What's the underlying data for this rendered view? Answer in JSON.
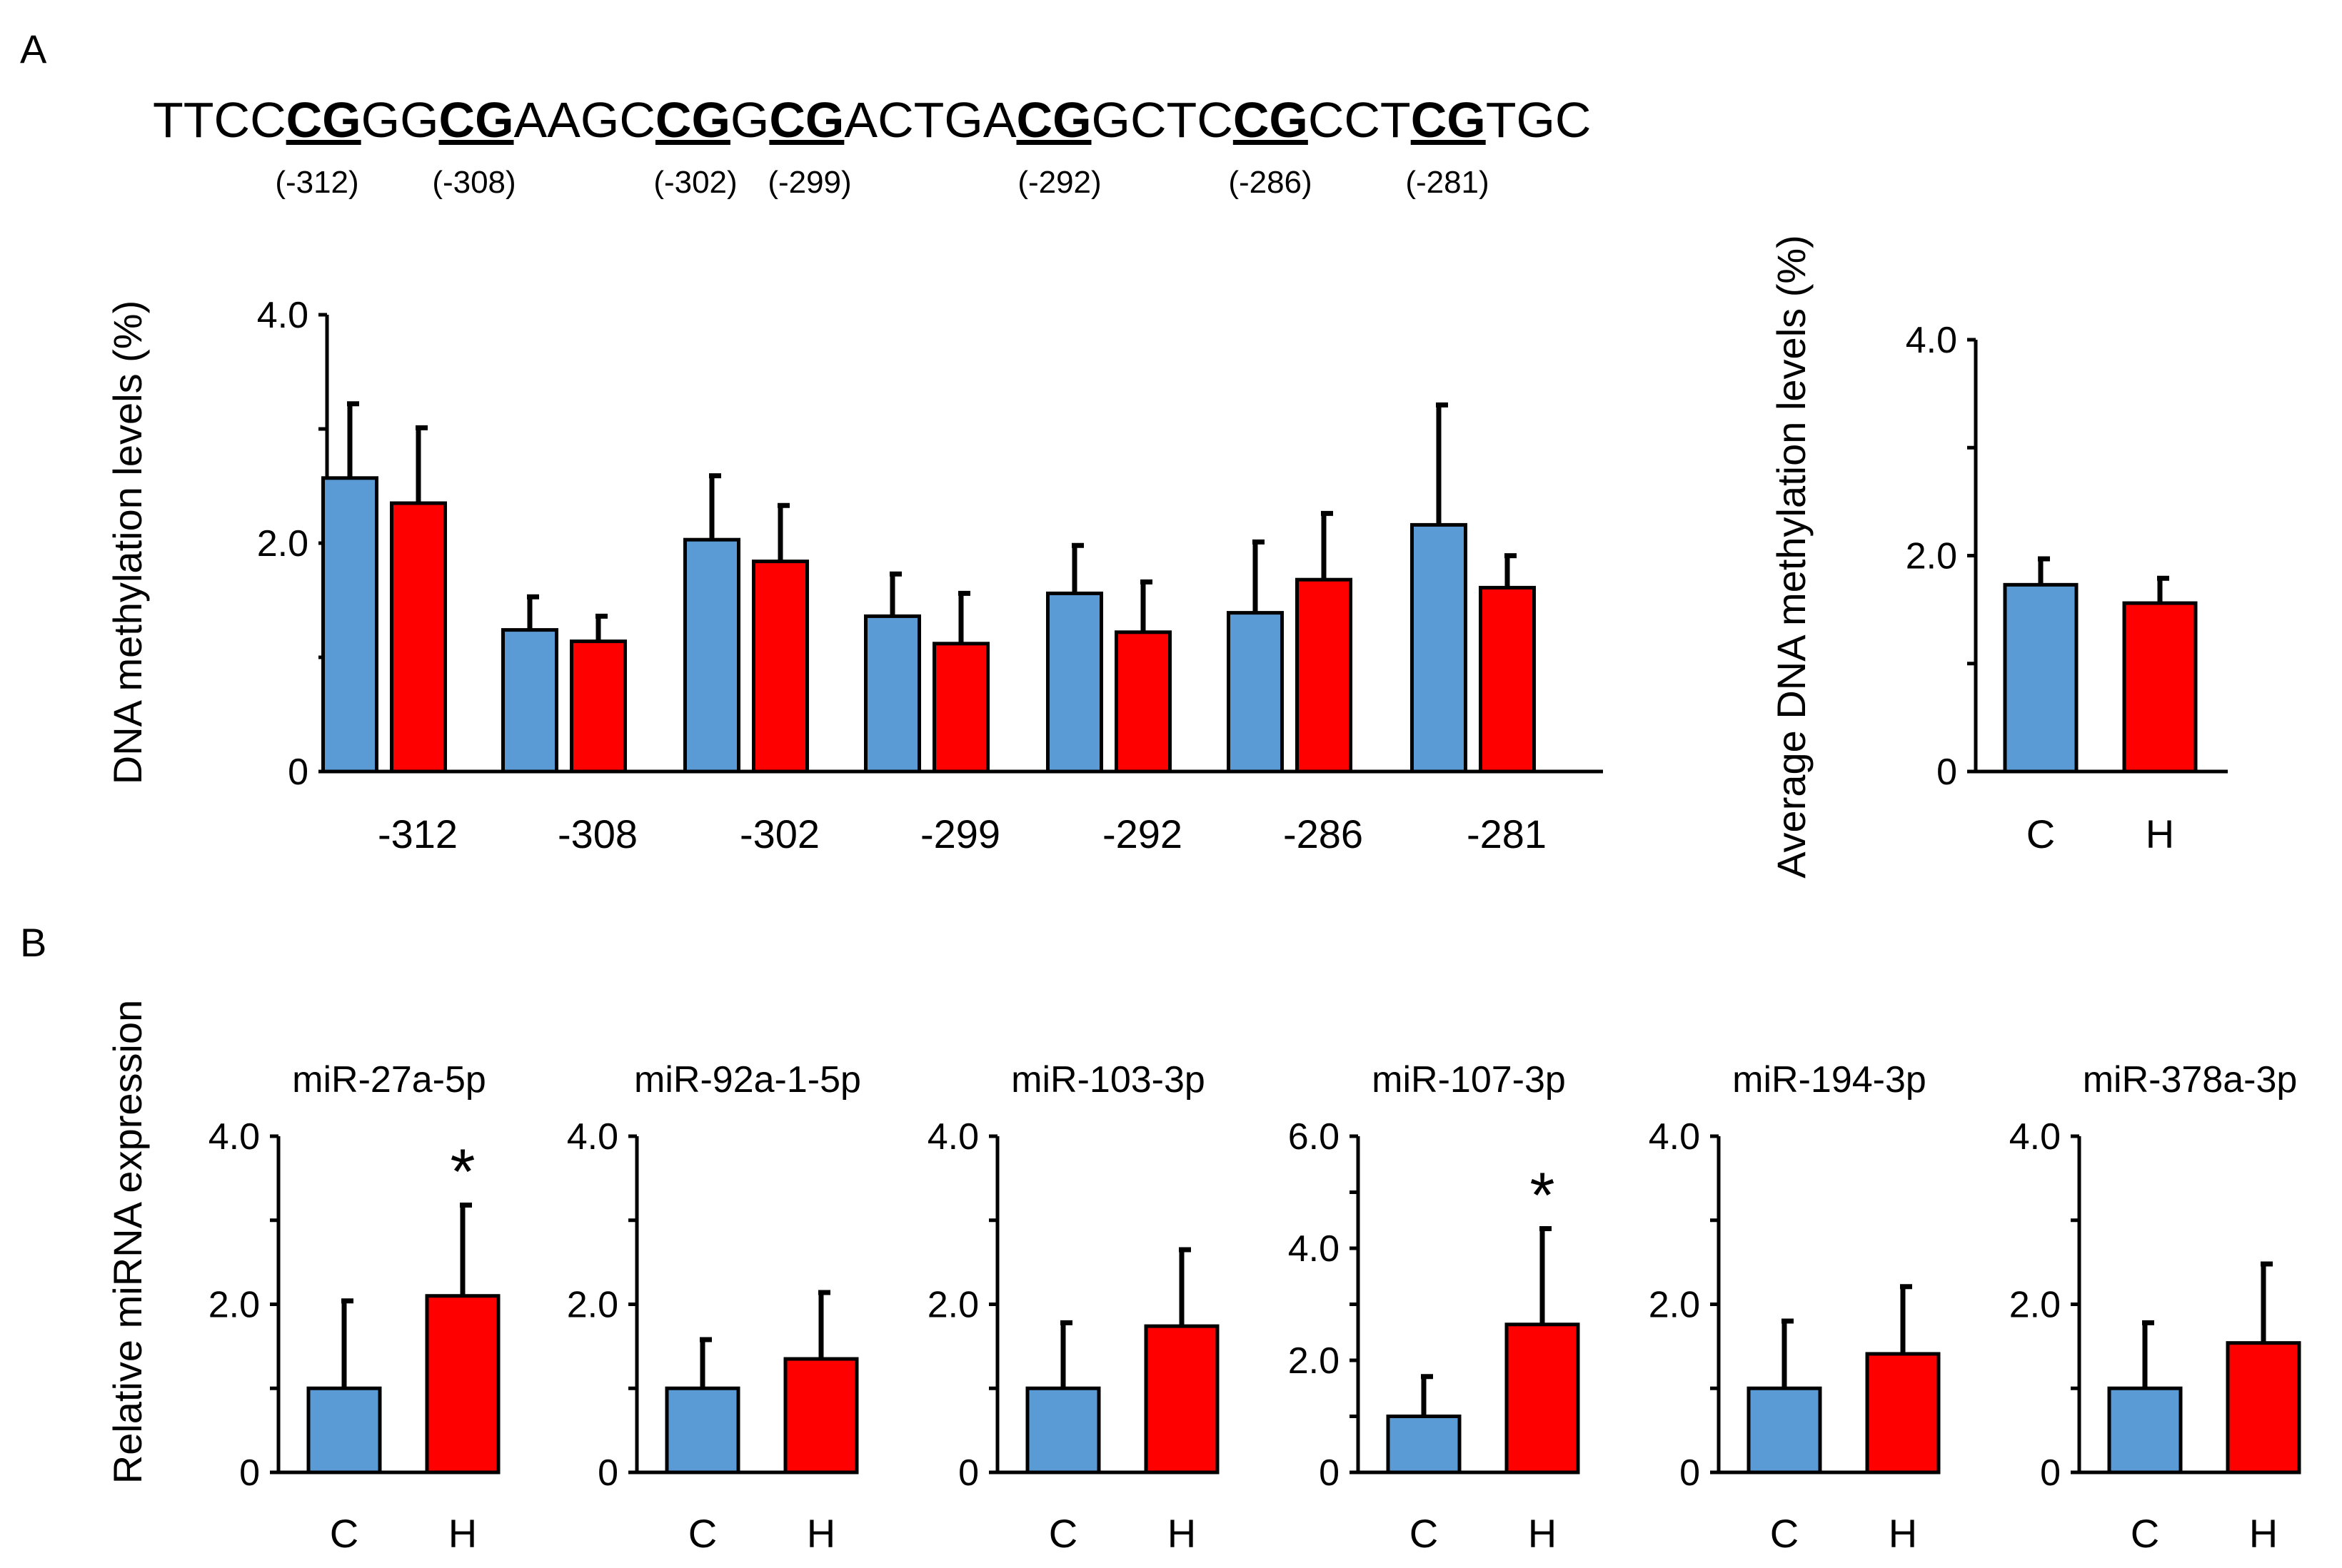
{
  "panels": {
    "a": "A",
    "b": "B"
  },
  "sequence": [
    {
      "t": "TTCC",
      "cg": false
    },
    {
      "t": "CG",
      "cg": true
    },
    {
      "t": "GG",
      "cg": false
    },
    {
      "t": "CG",
      "cg": true
    },
    {
      "t": "AAGC",
      "cg": false
    },
    {
      "t": "CG",
      "cg": true
    },
    {
      "t": "G",
      "cg": false
    },
    {
      "t": "CG",
      "cg": true
    },
    {
      "t": "ACTGA",
      "cg": false
    },
    {
      "t": "CG",
      "cg": true
    },
    {
      "t": "GCTC",
      "cg": false
    },
    {
      "t": "CG",
      "cg": true
    },
    {
      "t": "CCT",
      "cg": false
    },
    {
      "t": "CG",
      "cg": true
    },
    {
      "t": "TGC",
      "cg": false
    }
  ],
  "cpg_positions": [
    "(-312)",
    "(-308)",
    "(-302)",
    "(-299)",
    "(-292)",
    "(-286)",
    "(-281)"
  ],
  "colors": {
    "control": "#5b9bd5",
    "hypoxia": "#ff0000",
    "axis": "#000000"
  },
  "chart_data": [
    {
      "id": "A-sites",
      "type": "bar",
      "ylabel": "DNA methylation levels (%)",
      "ylim": [
        0,
        4
      ],
      "yticks": [
        "0",
        "2.0",
        "4.0"
      ],
      "categories": [
        "-312",
        "-308",
        "-302",
        "-299",
        "-292",
        "-286",
        "-281"
      ],
      "series": [
        {
          "name": "C",
          "values": [
            2.57,
            1.24,
            2.03,
            1.36,
            1.56,
            1.39,
            2.16
          ],
          "errors": [
            0.65,
            0.29,
            0.56,
            0.37,
            0.42,
            0.62,
            1.05
          ]
        },
        {
          "name": "H",
          "values": [
            2.35,
            1.14,
            1.84,
            1.12,
            1.22,
            1.68,
            1.61
          ],
          "errors": [
            0.66,
            0.22,
            0.49,
            0.44,
            0.44,
            0.58,
            0.28
          ]
        }
      ]
    },
    {
      "id": "A-average",
      "type": "bar",
      "ylabel": "Average DNA methylation levels (%)",
      "ylim": [
        0,
        4
      ],
      "yticks": [
        "0",
        "2.0",
        "4.0"
      ],
      "categories": [
        "C",
        "H"
      ],
      "values": [
        1.73,
        1.56
      ],
      "errors": [
        0.24,
        0.23
      ]
    },
    {
      "id": "B-miR-27a-5p",
      "type": "bar",
      "title": "miR-27a-5p",
      "ylabel": "Relative miRNA expression",
      "ylim": [
        0,
        4
      ],
      "yticks": [
        "0",
        "2.0",
        "4.0"
      ],
      "categories": [
        "C",
        "H"
      ],
      "values": [
        1.0,
        2.1
      ],
      "errors": [
        1.04,
        1.08
      ],
      "significance": [
        "",
        "*"
      ]
    },
    {
      "id": "B-miR-92a-1-5p",
      "type": "bar",
      "title": "miR-92a-1-5p",
      "ylim": [
        0,
        4
      ],
      "yticks": [
        "0",
        "2.0",
        "4.0"
      ],
      "categories": [
        "C",
        "H"
      ],
      "values": [
        1.0,
        1.35
      ],
      "errors": [
        0.58,
        0.79
      ],
      "significance": [
        "",
        ""
      ]
    },
    {
      "id": "B-miR-103-3p",
      "type": "bar",
      "title": "miR-103-3p",
      "ylim": [
        0,
        4
      ],
      "yticks": [
        "0",
        "2.0",
        "4.0"
      ],
      "categories": [
        "C",
        "H"
      ],
      "values": [
        1.0,
        1.74
      ],
      "errors": [
        0.78,
        0.91
      ],
      "significance": [
        "",
        ""
      ]
    },
    {
      "id": "B-miR-107-3p",
      "type": "bar",
      "title": "miR-107-3p",
      "ylim": [
        0,
        6
      ],
      "yticks": [
        "0",
        "2.0",
        "4.0",
        "6.0"
      ],
      "categories": [
        "C",
        "H"
      ],
      "values": [
        1.0,
        2.64
      ],
      "errors": [
        0.71,
        1.71
      ],
      "significance": [
        "",
        "*"
      ]
    },
    {
      "id": "B-miR-194-3p",
      "type": "bar",
      "title": "miR-194-3p",
      "ylim": [
        0,
        4
      ],
      "yticks": [
        "0",
        "2.0",
        "4.0"
      ],
      "categories": [
        "C",
        "H"
      ],
      "values": [
        1.0,
        1.41
      ],
      "errors": [
        0.8,
        0.8
      ],
      "significance": [
        "",
        ""
      ]
    },
    {
      "id": "B-miR-378a-3p",
      "type": "bar",
      "title": "miR-378a-3p",
      "ylim": [
        0,
        4
      ],
      "yticks": [
        "0",
        "2.0",
        "4.0"
      ],
      "categories": [
        "C",
        "H"
      ],
      "values": [
        1.0,
        1.54
      ],
      "errors": [
        0.78,
        0.94
      ],
      "significance": [
        "",
        ""
      ]
    }
  ]
}
